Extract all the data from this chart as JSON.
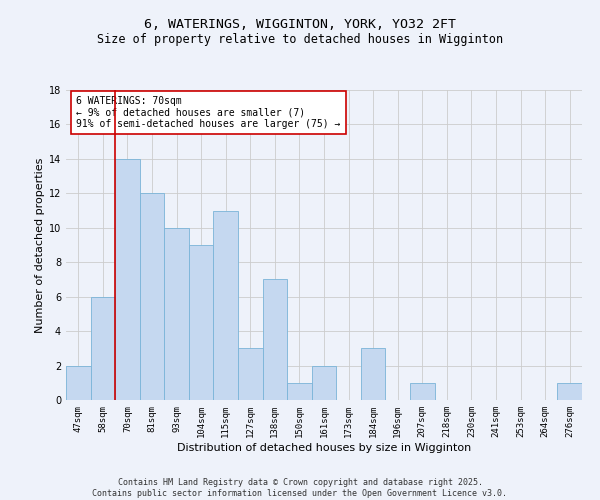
{
  "title_line1": "6, WATERINGS, WIGGINTON, YORK, YO32 2FT",
  "title_line2": "Size of property relative to detached houses in Wigginton",
  "xlabel": "Distribution of detached houses by size in Wigginton",
  "ylabel": "Number of detached properties",
  "categories": [
    "47sqm",
    "58sqm",
    "70sqm",
    "81sqm",
    "93sqm",
    "104sqm",
    "115sqm",
    "127sqm",
    "138sqm",
    "150sqm",
    "161sqm",
    "173sqm",
    "184sqm",
    "196sqm",
    "207sqm",
    "218sqm",
    "230sqm",
    "241sqm",
    "253sqm",
    "264sqm",
    "276sqm"
  ],
  "values": [
    2,
    6,
    14,
    12,
    10,
    9,
    11,
    3,
    7,
    1,
    2,
    0,
    3,
    0,
    1,
    0,
    0,
    0,
    0,
    0,
    1
  ],
  "bar_color": "#c5d8f0",
  "bar_edge_color": "#7ab4d8",
  "highlight_index": 2,
  "highlight_line_color": "#cc0000",
  "annotation_text": "6 WATERINGS: 70sqm\n← 9% of detached houses are smaller (7)\n91% of semi-detached houses are larger (75) →",
  "annotation_box_color": "#ffffff",
  "annotation_box_edge_color": "#cc0000",
  "ylim": [
    0,
    18
  ],
  "yticks": [
    0,
    2,
    4,
    6,
    8,
    10,
    12,
    14,
    16,
    18
  ],
  "grid_color": "#cccccc",
  "background_color": "#eef2fa",
  "footer_line1": "Contains HM Land Registry data © Crown copyright and database right 2025.",
  "footer_line2": "Contains public sector information licensed under the Open Government Licence v3.0.",
  "title_fontsize": 9.5,
  "subtitle_fontsize": 8.5,
  "axis_label_fontsize": 8,
  "tick_fontsize": 6.5,
  "annotation_fontsize": 7,
  "footer_fontsize": 6
}
